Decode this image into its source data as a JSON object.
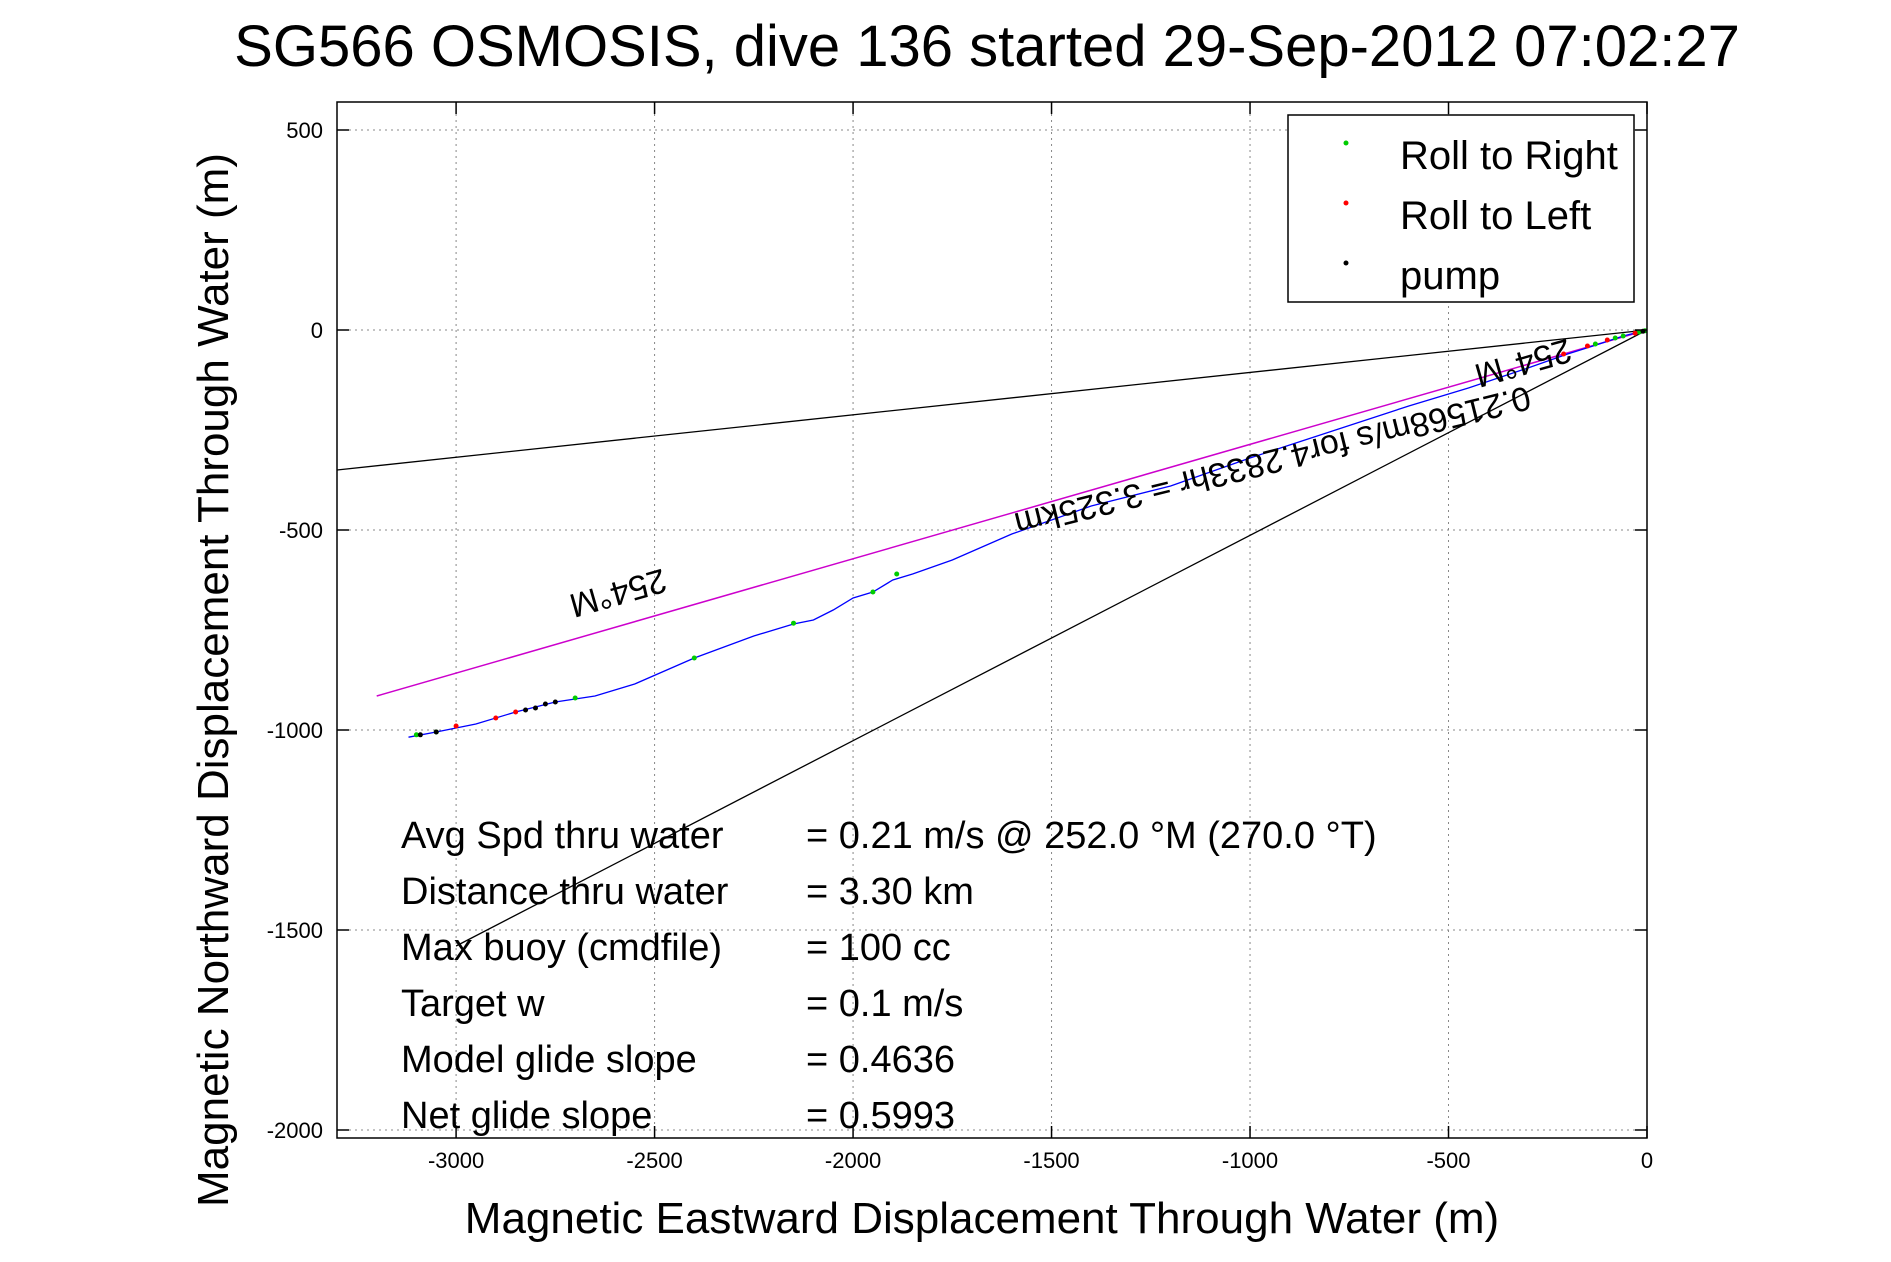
{
  "chart_data": {
    "type": "line",
    "title": "SG566 OSMOSIS, dive 136 started 29-Sep-2012 07:02:27",
    "xlabel": "Magnetic Eastward Displacement Through Water (m)",
    "ylabel": "Magnetic Northward Displacement Through Water (m)",
    "xlim": [
      -3300,
      0
    ],
    "ylim": [
      -2020,
      570
    ],
    "x_ticks": [
      -3000,
      -2500,
      -2000,
      -1500,
      -1000,
      -500,
      0
    ],
    "y_ticks": [
      500,
      0,
      -500,
      -1000,
      -1500,
      -2000
    ],
    "grid": true,
    "legend_position": "top-right",
    "legend": [
      {
        "label": "Roll to Right",
        "color": "#00cc00"
      },
      {
        "label": "Roll to Left",
        "color": "#ff0000"
      },
      {
        "label": "pump",
        "color": "#000000"
      }
    ],
    "track": {
      "color": "#0000ff",
      "x": [
        0,
        -60,
        -130,
        -200,
        -300,
        -450,
        -600,
        -800,
        -1000,
        -1200,
        -1400,
        -1600,
        -1750,
        -1850,
        -1900,
        -1950,
        -2000,
        -2050,
        -2100,
        -2150,
        -2250,
        -2400,
        -2550,
        -2650,
        -2750,
        -2850,
        -2950,
        -3050,
        -3120
      ],
      "y": [
        0,
        -15,
        -38,
        -60,
        -95,
        -145,
        -190,
        -255,
        -320,
        -390,
        -440,
        -510,
        -575,
        -610,
        -625,
        -655,
        -670,
        -700,
        -725,
        -735,
        -765,
        -820,
        -885,
        -915,
        -930,
        -955,
        -985,
        -1005,
        -1018
      ]
    },
    "course_line": {
      "color": "#cc00cc",
      "label": "254°M",
      "x": [
        0,
        -3200
      ],
      "y": [
        0,
        -915
      ]
    },
    "bound_lines": [
      {
        "color": "#000000",
        "x": [
          0,
          -3300
        ],
        "y": [
          0,
          -350
        ]
      },
      {
        "color": "#000000",
        "x": [
          0,
          -3000
        ],
        "y": [
          0,
          -1540
        ]
      }
    ],
    "roll_right_points": {
      "x": [
        -5,
        -20,
        -60,
        -80,
        -130,
        -1890,
        -1950,
        -2150,
        -2400,
        -2700,
        -3050,
        -3100
      ],
      "y": [
        -2,
        -5,
        -15,
        -20,
        -35,
        -610,
        -655,
        -733,
        -820,
        -920,
        -1005,
        -1012
      ]
    },
    "roll_left_points": {
      "x": [
        -30,
        -100,
        -150,
        -210,
        -3000,
        -2900,
        -2850
      ],
      "y": [
        -8,
        -25,
        -40,
        -60,
        -990,
        -970,
        -955
      ]
    },
    "pump_points": {
      "x": [
        -10,
        -2750,
        -2775,
        -2800,
        -2825,
        -3050,
        -3090
      ],
      "y": [
        -3,
        -930,
        -935,
        -945,
        -950,
        -1005,
        -1012
      ]
    },
    "annotations": [
      {
        "text": "254°M",
        "x": -2600,
        "y": -630,
        "rotate": 164
      },
      {
        "text": "254°M",
        "x": -320,
        "y": -55,
        "rotate": 164
      },
      {
        "text": "0.21568m/s for4.2833hr = 3.325km",
        "x": -950,
        "y": -300,
        "rotate": 166
      }
    ],
    "stats": [
      {
        "label": "Avg Spd thru water",
        "value": "=  0.21 m/s @ 252.0 °M (270.0 °T)"
      },
      {
        "label": "Distance thru water",
        "value": "=  3.30 km"
      },
      {
        "label": "Max buoy (cmdfile)",
        "value": "= 100 cc"
      },
      {
        "label": "Target w",
        "value": "= 0.1 m/s"
      },
      {
        "label": "Model glide slope",
        "value": "= 0.4636"
      },
      {
        "label": "Net glide slope",
        "value": "= 0.5993"
      }
    ]
  }
}
